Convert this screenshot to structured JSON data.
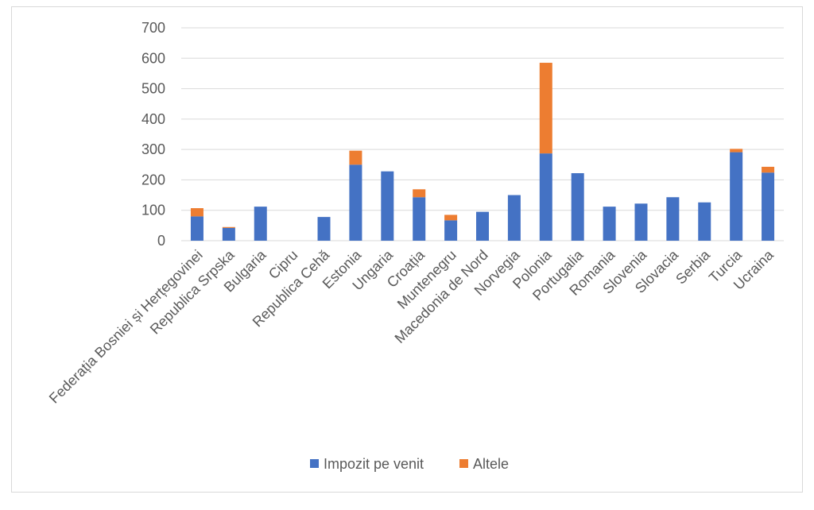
{
  "chart_data": {
    "type": "bar",
    "stacked": true,
    "categories": [
      "Federația Bosniei și Herțegovinei",
      "Republica Srpska",
      "Bulgaria",
      "Cipru",
      "Republica Cehă",
      "Estonia",
      "Ungaria",
      "Croația",
      "Muntenegru",
      "Macedonia de Nord",
      "Norvegia",
      "Polonia",
      "Portugalia",
      "Romania",
      "Slovenia",
      "Slovacia",
      "Serbia",
      "Turcia",
      "Ucraina"
    ],
    "series": [
      {
        "name": "Impozit pe venit",
        "color": "#4472C4",
        "values": [
          80,
          42,
          112,
          0,
          78,
          250,
          228,
          143,
          67,
          95,
          150,
          287,
          222,
          112,
          122,
          143,
          126,
          291,
          224
        ]
      },
      {
        "name": "Altele",
        "color": "#ED7D31",
        "values": [
          27,
          3,
          0,
          0,
          0,
          46,
          0,
          26,
          18,
          0,
          0,
          298,
          0,
          0,
          0,
          0,
          0,
          11,
          19
        ]
      }
    ],
    "ylim": [
      0,
      700
    ],
    "yticks": [
      0,
      100,
      200,
      300,
      400,
      500,
      600,
      700
    ],
    "grid": true,
    "legend_position": "bottom",
    "title": "",
    "xlabel": "",
    "ylabel": ""
  }
}
